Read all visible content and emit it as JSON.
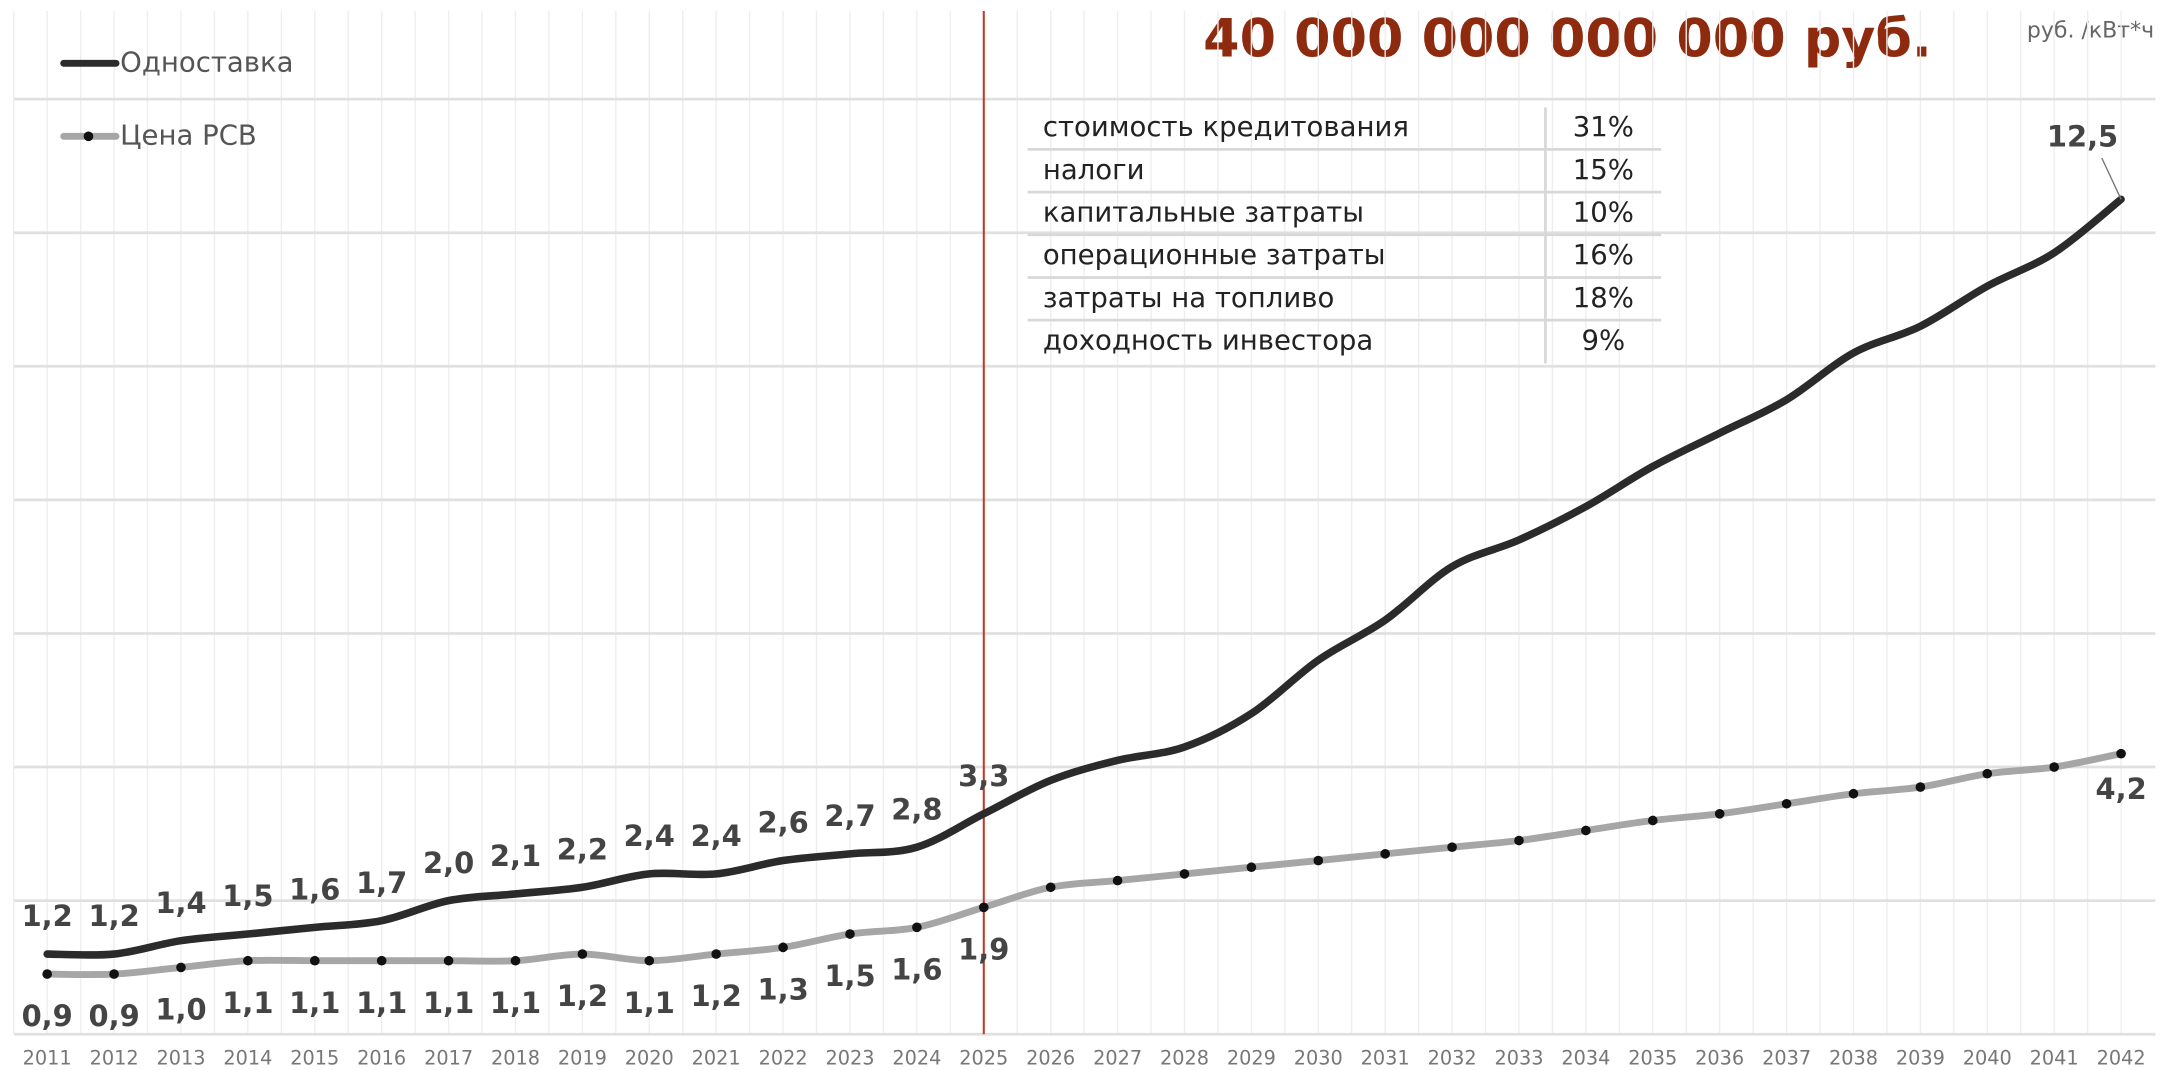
{
  "chart_data": {
    "type": "line",
    "title": "40 000 000 000 000 руб.",
    "unit_label": "руб. /кВт*ч",
    "categories": [
      "2011",
      "2012",
      "2013",
      "2014",
      "2015",
      "2016",
      "2017",
      "2018",
      "2019",
      "2020",
      "2021",
      "2022",
      "2023",
      "2024",
      "2025",
      "2026",
      "2027",
      "2028",
      "2029",
      "2030",
      "2031",
      "2032",
      "2033",
      "2034",
      "2035",
      "2036",
      "2037",
      "2038",
      "2039",
      "2040",
      "2041",
      "2042"
    ],
    "marker_category": "2025",
    "ylim": [
      0,
      14
    ],
    "yticks": [
      0,
      2,
      4,
      6,
      8,
      10,
      12,
      14
    ],
    "grid": true,
    "legend": "top-left",
    "series": [
      {
        "name": "Одноставка",
        "color": "#2b2b2b",
        "markers": false,
        "label_side": "above",
        "values": [
          1.2,
          1.2,
          1.4,
          1.5,
          1.6,
          1.7,
          2.0,
          2.1,
          2.2,
          2.4,
          2.4,
          2.6,
          2.7,
          2.8,
          3.3,
          3.8,
          4.1,
          4.3,
          4.8,
          5.6,
          6.2,
          7.0,
          7.4,
          7.9,
          8.5,
          9.0,
          9.5,
          10.2,
          10.6,
          11.2,
          11.7,
          12.5
        ],
        "value_labels": [
          "1,2",
          "1,2",
          "1,4",
          "1,5",
          "1,6",
          "1,7",
          "2,0",
          "2,1",
          "2,2",
          "2,4",
          "2,4",
          "2,6",
          "2,7",
          "2,8",
          "3,3",
          null,
          null,
          null,
          null,
          null,
          null,
          null,
          null,
          null,
          null,
          null,
          null,
          null,
          null,
          null,
          null,
          "12,5"
        ]
      },
      {
        "name": "Цена РСВ",
        "color": "#a6a6a6",
        "markers": true,
        "label_side": "below",
        "values": [
          0.9,
          0.9,
          1.0,
          1.1,
          1.1,
          1.1,
          1.1,
          1.1,
          1.2,
          1.1,
          1.2,
          1.3,
          1.5,
          1.6,
          1.9,
          2.2,
          2.3,
          2.4,
          2.5,
          2.6,
          2.7,
          2.8,
          2.9,
          3.05,
          3.2,
          3.3,
          3.45,
          3.6,
          3.7,
          3.9,
          4.0,
          4.2
        ],
        "value_labels": [
          "0,9",
          "0,9",
          "1,0",
          "1,1",
          "1,1",
          "1,1",
          "1,1",
          "1,1",
          "1,2",
          "1,1",
          "1,2",
          "1,3",
          "1,5",
          "1,6",
          "1,9",
          null,
          null,
          null,
          null,
          null,
          null,
          null,
          null,
          null,
          null,
          null,
          null,
          null,
          null,
          null,
          null,
          "4,2"
        ]
      }
    ]
  },
  "table": {
    "rows": [
      [
        "стоимость кредитования",
        "31%"
      ],
      [
        "налоги",
        "15%"
      ],
      [
        "капитальные затраты",
        "10%"
      ],
      [
        "операционные затраты",
        "16%"
      ],
      [
        "затраты на топливо",
        "18%"
      ],
      [
        "доходность инвестора",
        "9%"
      ]
    ]
  }
}
